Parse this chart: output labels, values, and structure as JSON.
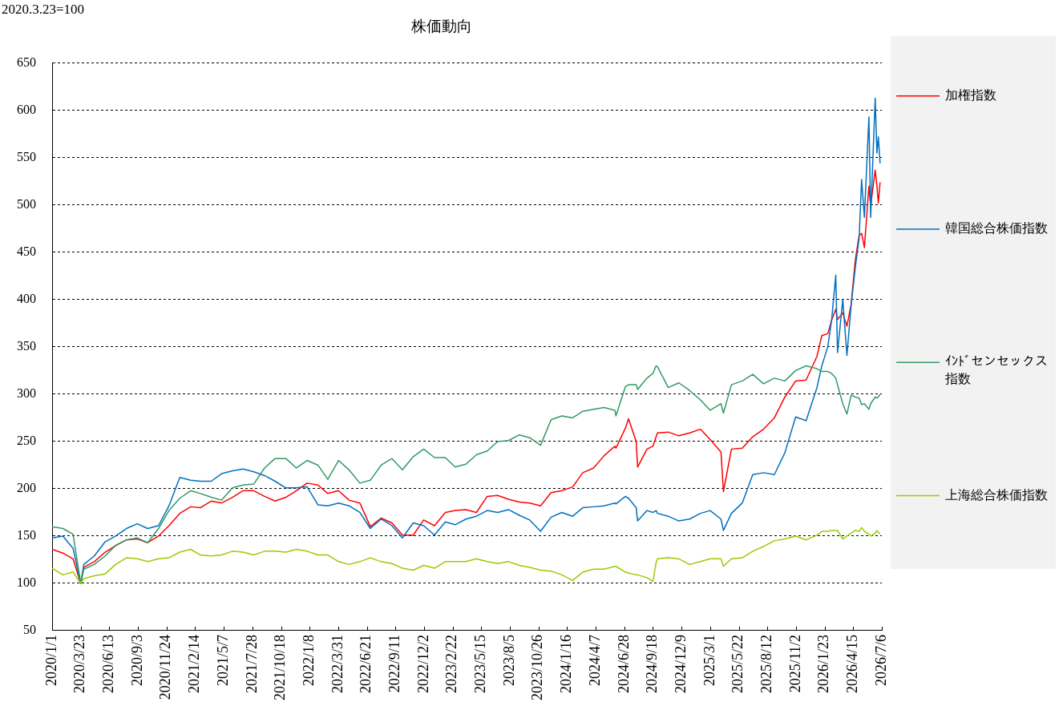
{
  "chart_data": {
    "type": "line",
    "title": "株価動向",
    "ylabel": "2020.3.23=100",
    "x": [
      "2020-01-01",
      "2020-02-01",
      "2020-03-01",
      "2020-03-23",
      "2020-04-01",
      "2020-05-01",
      "2020-06-01",
      "2020-07-01",
      "2020-08-01",
      "2020-09-01",
      "2020-10-01",
      "2020-11-01",
      "2020-12-01",
      "2021-01-01",
      "2021-02-01",
      "2021-03-01",
      "2021-04-01",
      "2021-05-01",
      "2021-06-01",
      "2021-07-01",
      "2021-08-01",
      "2021-09-01",
      "2021-10-01",
      "2021-11-01",
      "2021-12-01",
      "2022-01-01",
      "2022-02-01",
      "2022-03-01",
      "2022-04-01",
      "2022-05-01",
      "2022-06-01",
      "2022-07-01",
      "2022-08-01",
      "2022-09-01",
      "2022-10-01",
      "2022-11-01",
      "2022-12-01",
      "2023-01-01",
      "2023-02-01",
      "2023-03-01",
      "2023-04-01",
      "2023-05-01",
      "2023-06-01",
      "2023-07-01",
      "2023-08-01",
      "2023-09-01",
      "2023-10-01",
      "2023-11-01",
      "2023-12-01",
      "2024-01-01",
      "2024-02-01",
      "2024-03-01",
      "2024-04-01",
      "2024-05-01",
      "2024-06-01",
      "2024-06-04",
      "2024-07-01",
      "2024-07-10",
      "2024-08-01",
      "2024-08-05",
      "2024-09-01",
      "2024-09-18",
      "2024-09-27",
      "2024-10-01",
      "2024-11-01",
      "2024-12-01",
      "2025-01-01",
      "2025-02-01",
      "2025-03-01",
      "2025-04-01",
      "2025-04-08",
      "2025-05-01",
      "2025-06-01",
      "2025-07-01",
      "2025-08-01",
      "2025-09-01",
      "2025-10-01",
      "2025-11-01",
      "2025-12-01",
      "2026-01-01",
      "2026-01-15",
      "2026-02-01",
      "2026-02-12",
      "2026-02-24",
      "2026-03-01",
      "2026-03-16",
      "2026-03-28",
      "2026-04-09",
      "2026-04-21",
      "2026-05-02",
      "2026-05-09",
      "2026-05-17",
      "2026-05-30",
      "2026-06-04",
      "2026-06-17",
      "2026-06-22",
      "2026-06-26",
      "2026-07-01"
    ],
    "series": [
      {
        "name": "加権指数",
        "color": "#ff0000",
        "values": [
          136,
          132,
          126,
          100,
          117,
          123,
          133,
          140,
          146,
          147,
          143,
          150,
          161,
          174,
          181,
          180,
          187,
          185,
          191,
          198,
          198,
          192,
          187,
          191,
          198,
          206,
          204,
          195,
          198,
          188,
          185,
          160,
          169,
          164,
          151,
          151,
          167,
          161,
          175,
          177,
          178,
          175,
          192,
          193,
          189,
          186,
          185,
          182,
          196,
          198,
          202,
          217,
          222,
          235,
          245,
          243,
          264,
          274,
          250,
          223,
          242,
          245,
          255,
          259,
          260,
          256,
          259,
          263,
          252,
          239,
          197,
          242,
          243,
          255,
          263,
          275,
          297,
          314,
          315,
          340,
          362,
          364,
          378,
          390,
          379,
          386,
          372,
          395,
          442,
          468,
          470,
          455,
          520,
          499,
          537,
          520,
          502,
          524
        ]
      },
      {
        "name": "韓国総合株価指数",
        "color": "#0070c0",
        "values": [
          148,
          150,
          137,
          100,
          120,
          129,
          144,
          150,
          158,
          163,
          158,
          161,
          182,
          212,
          209,
          208,
          208,
          216,
          219,
          221,
          218,
          214,
          208,
          201,
          201,
          202,
          183,
          182,
          185,
          182,
          175,
          158,
          168,
          161,
          148,
          164,
          161,
          151,
          165,
          162,
          168,
          171,
          177,
          175,
          178,
          172,
          167,
          155,
          170,
          175,
          171,
          180,
          181,
          182,
          185,
          184,
          192,
          190,
          180,
          166,
          177,
          175,
          177,
          174,
          171,
          166,
          168,
          174,
          177,
          168,
          156,
          174,
          185,
          215,
          217,
          215,
          238,
          276,
          272,
          307,
          330,
          350,
          378,
          426,
          344,
          400,
          341,
          394,
          434,
          465,
          527,
          487,
          593,
          487,
          613,
          555,
          572,
          544
        ]
      },
      {
        "name": "ｲﾝﾄﾞセンセックス指数",
        "color": "#339966",
        "values": [
          160,
          158,
          152,
          100,
          115,
          120,
          129,
          140,
          146,
          148,
          143,
          158,
          177,
          190,
          198,
          195,
          191,
          188,
          201,
          204,
          205,
          222,
          232,
          232,
          222,
          230,
          225,
          210,
          230,
          220,
          206,
          209,
          225,
          232,
          220,
          234,
          242,
          233,
          233,
          223,
          226,
          236,
          240,
          250,
          251,
          257,
          254,
          246,
          273,
          277,
          275,
          282,
          284,
          286,
          283,
          277,
          308,
          310,
          310,
          305,
          317,
          322,
          330,
          329,
          307,
          312,
          304,
          294,
          283,
          290,
          280,
          310,
          314,
          321,
          311,
          317,
          314,
          325,
          330,
          327,
          324,
          324,
          322,
          317,
          310,
          290,
          279,
          299,
          297,
          296,
          289,
          290,
          284,
          290,
          297,
          296,
          297,
          300
        ]
      },
      {
        "name": "上海総合株価指数",
        "color": "#99cc00",
        "values": [
          116,
          109,
          112,
          100,
          105,
          108,
          110,
          120,
          127,
          126,
          123,
          126,
          127,
          133,
          136,
          130,
          129,
          130,
          134,
          133,
          130,
          134,
          134,
          133,
          136,
          134,
          130,
          130,
          123,
          120,
          123,
          127,
          123,
          121,
          116,
          114,
          119,
          116,
          123,
          123,
          123,
          126,
          123,
          121,
          123,
          119,
          117,
          114,
          113,
          109,
          103,
          112,
          115,
          115,
          118,
          118,
          112,
          111,
          109,
          109,
          106,
          102,
          122,
          126,
          127,
          126,
          120,
          123,
          126,
          126,
          118,
          126,
          127,
          134,
          139,
          145,
          147,
          150,
          146,
          151,
          155,
          155,
          156,
          156,
          156,
          147,
          150,
          153,
          156,
          155,
          159,
          155,
          152,
          150,
          153,
          156,
          154,
          152
        ]
      }
    ],
    "xlim": [
      "2020-01-01",
      "2026-07-06"
    ],
    "xticks": [
      {
        "value": "2020-01-01",
        "label": "2020/1/1"
      },
      {
        "value": "2020-03-23",
        "label": "2020/3/23"
      },
      {
        "value": "2020-06-13",
        "label": "2020/6/13"
      },
      {
        "value": "2020-09-03",
        "label": "2020/9/3"
      },
      {
        "value": "2020-11-24",
        "label": "2020/11/24"
      },
      {
        "value": "2021-02-14",
        "label": "2021/2/14"
      },
      {
        "value": "2021-05-07",
        "label": "2021/5/7"
      },
      {
        "value": "2021-07-28",
        "label": "2021/7/28"
      },
      {
        "value": "2021-10-18",
        "label": "2021/10/18"
      },
      {
        "value": "2022-01-08",
        "label": "2022/1/8"
      },
      {
        "value": "2022-03-31",
        "label": "2022/3/31"
      },
      {
        "value": "2022-06-21",
        "label": "2022/6/21"
      },
      {
        "value": "2022-09-11",
        "label": "2022/9/11"
      },
      {
        "value": "2022-12-02",
        "label": "2022/12/2"
      },
      {
        "value": "2023-02-22",
        "label": "2023/2/22"
      },
      {
        "value": "2023-05-15",
        "label": "2023/5/15"
      },
      {
        "value": "2023-08-05",
        "label": "2023/8/5"
      },
      {
        "value": "2023-10-26",
        "label": "2023/10/26"
      },
      {
        "value": "2024-01-16",
        "label": "2024/1/16"
      },
      {
        "value": "2024-04-07",
        "label": "2024/4/7"
      },
      {
        "value": "2024-06-28",
        "label": "2024/6/28"
      },
      {
        "value": "2024-09-18",
        "label": "2024/9/18"
      },
      {
        "value": "2024-12-09",
        "label": "2024/12/9"
      },
      {
        "value": "2025-03-01",
        "label": "2025/3/1"
      },
      {
        "value": "2025-05-22",
        "label": "2025/5/22"
      },
      {
        "value": "2025-08-12",
        "label": "2025/8/12"
      },
      {
        "value": "2025-11-02",
        "label": "2025/11/2"
      },
      {
        "value": "2026-01-23",
        "label": "2026/1/23"
      },
      {
        "value": "2026-04-15",
        "label": "2026/4/15"
      },
      {
        "value": "2026-07-06",
        "label": "2026/7/6"
      }
    ],
    "ylim": [
      50,
      650
    ],
    "yticks": [
      50,
      100,
      150,
      200,
      250,
      300,
      350,
      400,
      450,
      500,
      550,
      600,
      650
    ],
    "grid": "y",
    "legend": "right"
  }
}
